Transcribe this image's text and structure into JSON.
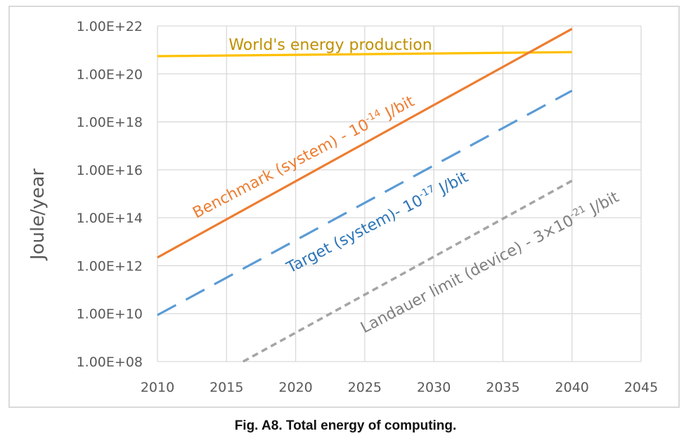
{
  "caption": "Fig. A8. Total energy of computing.",
  "chart_data": {
    "type": "line",
    "title": "",
    "xlabel": "",
    "ylabel": "Joule/year",
    "yscale": "log",
    "xlim": [
      2010,
      2045
    ],
    "ylim": [
      100000000.0,
      1e+22
    ],
    "grid": true,
    "x_ticks": [
      "2010",
      "2015",
      "2020",
      "2025",
      "2030",
      "2035",
      "2040",
      "2045"
    ],
    "y_ticks": [
      "1.00E+08",
      "1.00E+10",
      "1.00E+12",
      "1.00E+14",
      "1.00E+16",
      "1.00E+18",
      "1.00E+20",
      "1.00E+22"
    ],
    "series": [
      {
        "name": "World's energy production",
        "label_text": "World's energy production",
        "color": "#ffc000",
        "text_color": "#bf9000",
        "style": "solid",
        "x": [
          2010,
          2040
        ],
        "y": [
          5.5e+20,
          8.1e+20
        ]
      },
      {
        "name": "Benchmark (system) - 10^-14 J/bit",
        "label_text": "Benchmark (system) - 10",
        "label_sup": "-14",
        "label_tail": " J/bit",
        "color": "#ed7d31",
        "text_color": "#ed7d31",
        "style": "solid",
        "x": [
          2010,
          2040
        ],
        "y": [
          2200000000000.0,
          7.6e+21
        ]
      },
      {
        "name": "Target (system)- 10^-17 J/bit",
        "label_text": "Target (system)- 10",
        "label_sup": "-17",
        "label_tail": " J/bit",
        "color": "#5b9bd5",
        "text_color": "#2e75b6",
        "style": "dashed",
        "x": [
          2010,
          2040
        ],
        "y": [
          8700000000.0,
          2e+19
        ]
      },
      {
        "name": "Landauer limit (device) - 3x10^-21 J/bit",
        "label_text": "Landauer limit (device) - 3×10",
        "label_sup": "-21",
        "label_tail": " J/bit",
        "color": "#a5a5a5",
        "text_color": "#7f7f7f",
        "style": "dotted",
        "x": [
          2016.2,
          2040
        ],
        "y": [
          100000000.0,
          3500000000000000.0
        ]
      }
    ]
  }
}
